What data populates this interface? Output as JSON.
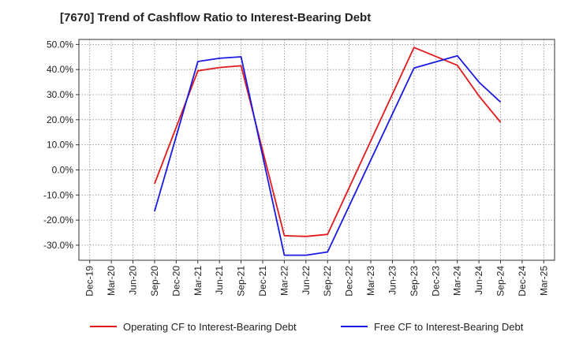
{
  "chart_data": {
    "type": "line",
    "title": "[7670]  Trend of Cashflow Ratio to Interest-Bearing Debt",
    "xlabel": "",
    "ylabel": "",
    "categories": [
      "Dec-19",
      "Mar-20",
      "Jun-20",
      "Sep-20",
      "Dec-20",
      "Mar-21",
      "Jun-21",
      "Sep-21",
      "Dec-21",
      "Mar-22",
      "Jun-22",
      "Sep-22",
      "Dec-22",
      "Mar-23",
      "Jun-23",
      "Sep-23",
      "Dec-23",
      "Mar-24",
      "Jun-24",
      "Sep-24",
      "Dec-24",
      "Mar-25"
    ],
    "y_tick_labels": [
      "50.0%",
      "40.0%",
      "30.0%",
      "20.0%",
      "10.0%",
      "0.0%",
      "-10.0%",
      "-20.0%",
      "-30.0%"
    ],
    "y_tick_values": [
      50,
      40,
      30,
      20,
      10,
      0,
      -10,
      -20,
      -30
    ],
    "ylim": [
      -36,
      52
    ],
    "grid": true,
    "legend_position": "bottom",
    "series": [
      {
        "name": "Operating CF to Interest-Bearing Debt",
        "color": "#e31a1c",
        "values": [
          null,
          null,
          null,
          -5.5,
          null,
          39.5,
          40.8,
          41.5,
          null,
          -26.2,
          -26.5,
          -25.7,
          null,
          null,
          null,
          48.8,
          null,
          41.7,
          29.5,
          19.0,
          null,
          null
        ]
      },
      {
        "name": "Free CF to Interest-Bearing Debt",
        "color": "#1a1ae3",
        "values": [
          null,
          null,
          null,
          -16.5,
          null,
          43.2,
          44.5,
          45.1,
          null,
          -34.0,
          -34.0,
          -32.7,
          null,
          null,
          null,
          40.6,
          null,
          45.5,
          35.0,
          27.0,
          null,
          null
        ]
      }
    ]
  }
}
